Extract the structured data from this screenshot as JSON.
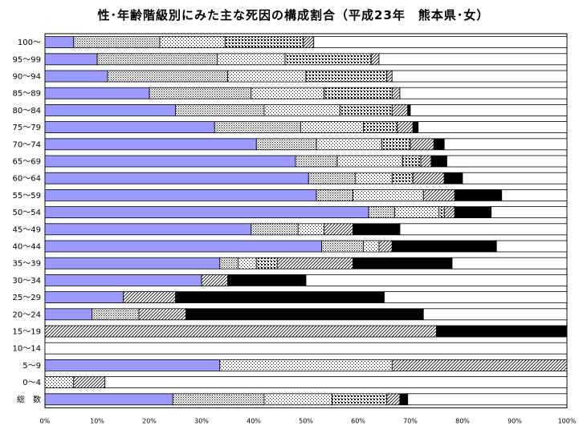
{
  "chart_data": {
    "type": "bar",
    "orientation": "horizontal",
    "stacked": true,
    "title": "性･年齢階級別にみた主な死因の構成割合（平成23年　熊本県･女）",
    "xlabel": "",
    "ylabel": "",
    "xlim": [
      0,
      100
    ],
    "x_ticks": [
      "0%",
      "10%",
      "20%",
      "30%",
      "40%",
      "50%",
      "60%",
      "70%",
      "80%",
      "90%",
      "100%"
    ],
    "categories": [
      "100～",
      "95～99",
      "90～94",
      "85～89",
      "80～84",
      "75～79",
      "70～74",
      "65～69",
      "60～64",
      "55～59",
      "50～54",
      "45～49",
      "40～44",
      "35～39",
      "30～34",
      "25～29",
      "20～24",
      "15～19",
      "10～14",
      "5～9",
      "0～4",
      "総　数"
    ],
    "segment_styles": [
      {
        "fill": "#9999ff",
        "pattern": "solid"
      },
      {
        "fill": "#ffffff",
        "pattern": "dots-dense"
      },
      {
        "fill": "#ffffff",
        "pattern": "dots-medium"
      },
      {
        "fill": "#ffffff",
        "pattern": "dots-sparse"
      },
      {
        "fill": "#ffffff",
        "pattern": "diagonal"
      },
      {
        "fill": "#000000",
        "pattern": "solid"
      },
      {
        "fill": "#ffffff",
        "pattern": "none"
      }
    ],
    "rows": [
      [
        5.5,
        16.5,
        12.5,
        15.0,
        2.0,
        0.0,
        48.5
      ],
      [
        10.0,
        23.0,
        13.0,
        16.5,
        1.5,
        0.0,
        36.0
      ],
      [
        12.0,
        23.0,
        15.0,
        15.5,
        1.0,
        0.0,
        33.5
      ],
      [
        20.0,
        19.5,
        14.0,
        13.0,
        1.5,
        0.0,
        32.0
      ],
      [
        25.0,
        17.0,
        14.5,
        10.0,
        3.0,
        0.5,
        30.0
      ],
      [
        32.5,
        16.5,
        12.0,
        6.5,
        3.0,
        1.0,
        28.5
      ],
      [
        40.5,
        11.5,
        12.5,
        5.5,
        4.5,
        2.0,
        23.5
      ],
      [
        48.0,
        8.0,
        12.5,
        3.5,
        2.0,
        3.0,
        23.0
      ],
      [
        50.5,
        9.0,
        7.0,
        4.0,
        6.0,
        3.5,
        20.0
      ],
      [
        52.0,
        7.0,
        13.5,
        0.0,
        6.0,
        9.0,
        12.5
      ],
      [
        62.0,
        5.0,
        8.5,
        1.0,
        2.0,
        7.0,
        14.5
      ],
      [
        39.5,
        9.0,
        5.0,
        0.0,
        5.5,
        9.0,
        32.0
      ],
      [
        53.0,
        8.0,
        3.0,
        0.0,
        2.5,
        20.0,
        13.5
      ],
      [
        33.5,
        3.5,
        3.5,
        4.0,
        14.5,
        19.0,
        22.0
      ],
      [
        30.0,
        0.0,
        0.0,
        0.0,
        5.0,
        15.0,
        50.0
      ],
      [
        15.0,
        0.0,
        0.0,
        0.0,
        10.0,
        40.0,
        35.0
      ],
      [
        9.0,
        9.0,
        0.0,
        0.0,
        9.0,
        45.5,
        27.5
      ],
      [
        0.0,
        0.0,
        0.0,
        0.0,
        75.0,
        25.0,
        0.0
      ],
      [
        0.0,
        0.0,
        0.0,
        0.0,
        0.0,
        0.0,
        100.0
      ],
      [
        33.5,
        0.0,
        33.0,
        0.0,
        33.5,
        0.0,
        0.0
      ],
      [
        0.0,
        0.0,
        5.5,
        0.0,
        6.0,
        0.0,
        88.5
      ],
      [
        24.5,
        17.5,
        13.0,
        10.5,
        2.5,
        1.5,
        30.5
      ]
    ]
  }
}
